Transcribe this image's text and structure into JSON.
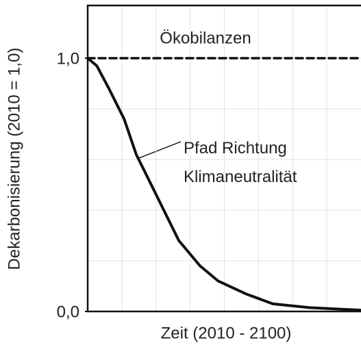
{
  "chart_data": {
    "type": "line",
    "ylabel": "Dekarbonisierung (2010 = 1,0)",
    "xlabel": "Zeit (2010 - 2100)",
    "xlim": [
      2010,
      2100
    ],
    "ylim": [
      0,
      1.2
    ],
    "yticks": [
      {
        "value": 0,
        "label": "0,0"
      },
      {
        "value": 1,
        "label": "1,0"
      }
    ],
    "ygrid": [
      0.2,
      0.4,
      0.6,
      0.8,
      1.0
    ],
    "xgrid": [
      2021.25,
      2032.5,
      2043.75,
      2055,
      2066.25,
      2077.5,
      2088.75
    ],
    "grid": true,
    "series": [
      {
        "name": "Ökobilanzen",
        "color": "#111111",
        "dashed": true,
        "x": [
          2010,
          2100
        ],
        "values": [
          1.0,
          1.0
        ]
      },
      {
        "name": "Pfad Richtung Klimaneutralität",
        "color": "#111111",
        "dashed": false,
        "x": [
          2010,
          2013,
          2017,
          2022,
          2026,
          2033,
          2040,
          2047,
          2053,
          2062,
          2071,
          2083,
          2100
        ],
        "values": [
          1.0,
          0.97,
          0.88,
          0.76,
          0.62,
          0.45,
          0.28,
          0.18,
          0.12,
          0.07,
          0.03,
          0.015,
          0.005
        ]
      }
    ]
  }
}
